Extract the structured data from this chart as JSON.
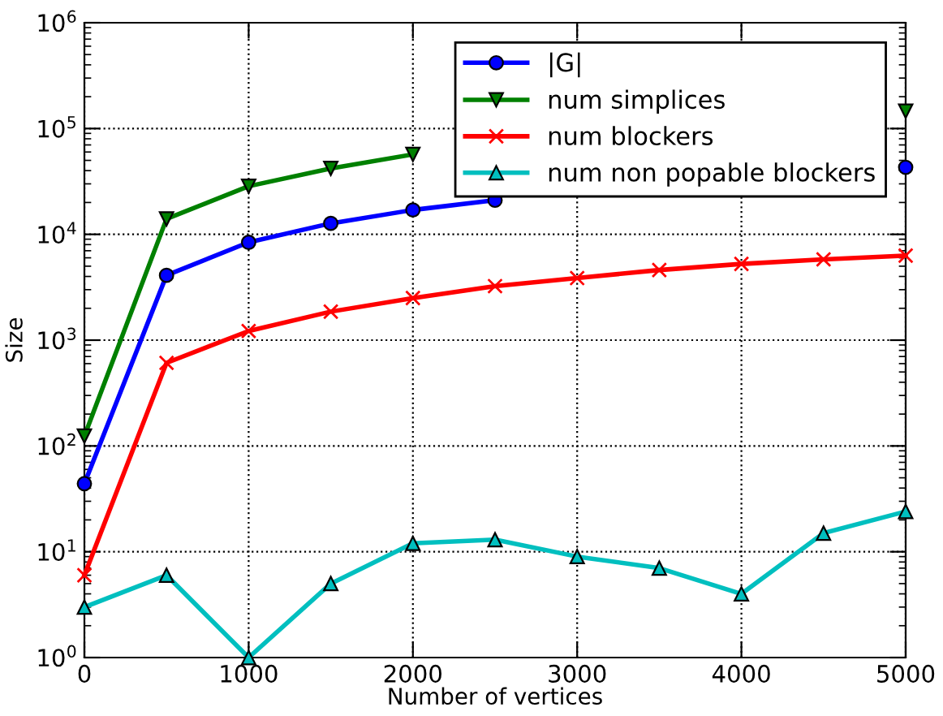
{
  "chart_data": {
    "type": "line",
    "xlabel": "Number of vertices",
    "ylabel": "Size",
    "log": "y",
    "grid": true,
    "legend": "top right",
    "x": [
      0,
      500,
      1000,
      1500,
      2000,
      2500,
      3000,
      3500,
      4000,
      4500,
      5000
    ],
    "xlim": [
      0,
      5000
    ],
    "xticks": [
      0,
      1000,
      2000,
      3000,
      4000,
      5000
    ],
    "ylim": [
      1,
      1000000
    ],
    "yticks": [
      {
        "value": 1,
        "label": "10$^{0}$"
      },
      {
        "value": 10,
        "label": "10$^{1}$"
      },
      {
        "value": 100,
        "label": "10$^{2}$"
      },
      {
        "value": 1000,
        "label": "10$^{3}$"
      },
      {
        "value": 10000,
        "label": "10$^{4}$"
      },
      {
        "value": 100000,
        "label": "10$^{5}$"
      },
      {
        "value": 1000000,
        "label": "10$^{6}$"
      }
    ],
    "series": [
      {
        "name": "|G|",
        "color": "#0000ff",
        "marker": "circle",
        "values": [
          44,
          4100,
          8400,
          12700,
          17000,
          21000,
          null,
          null,
          null,
          null,
          43000
        ]
      },
      {
        "name": "num simplices",
        "color": "#008000",
        "marker": "triangle_down",
        "values": [
          124,
          14000,
          28500,
          42000,
          57000,
          null,
          null,
          null,
          null,
          null,
          146000
        ]
      },
      {
        "name": "num blockers",
        "color": "#ff0000",
        "marker": "cross",
        "values": [
          6,
          610,
          1220,
          1860,
          2500,
          3240,
          3860,
          4600,
          5250,
          5800,
          6300
        ]
      },
      {
        "name": "num non popable blockers",
        "color": "#00bfbf",
        "marker": "triangle",
        "values": [
          3,
          6,
          1,
          5,
          12,
          13,
          9,
          7,
          4,
          15,
          24
        ]
      }
    ]
  }
}
